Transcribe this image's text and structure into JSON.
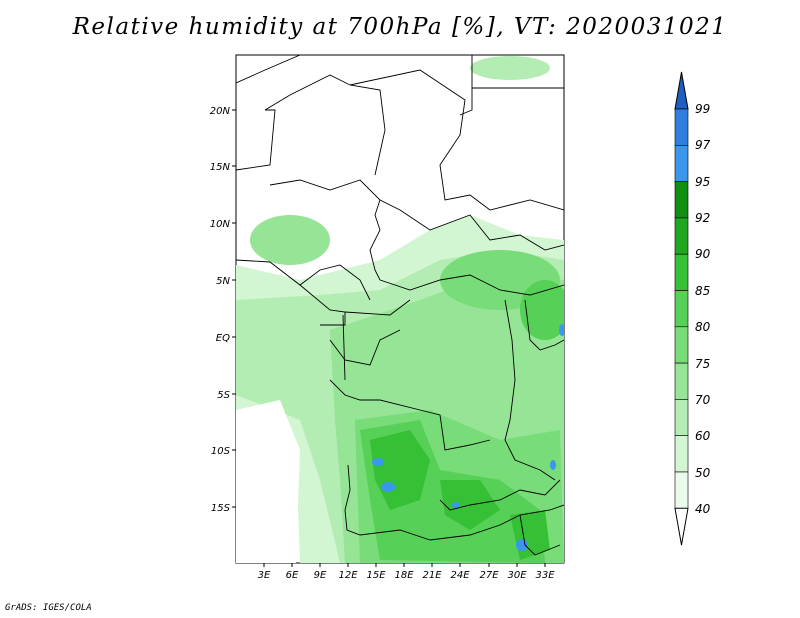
{
  "title": "Relative humidity at 700hPa [%], VT: 2020031021",
  "credit": "GrADS: IGES/COLA",
  "map": {
    "lat_labels": [
      "20N",
      "15N",
      "10N",
      "5N",
      "EQ",
      "5S",
      "10S",
      "15S"
    ],
    "lon_labels": [
      "3E",
      "6E",
      "9E",
      "12E",
      "15E",
      "18E",
      "21E",
      "24E",
      "27E",
      "30E",
      "33E"
    ]
  },
  "colorbar": {
    "labels": [
      "99",
      "97",
      "95",
      "92",
      "90",
      "85",
      "80",
      "75",
      "70",
      "60",
      "50",
      "40"
    ],
    "colors": [
      "#1f5fbf",
      "#2f7fdf",
      "#3a97ee",
      "#109010",
      "#1fa81f",
      "#36c036",
      "#56d056",
      "#78dc78",
      "#96e496",
      "#b4edb4",
      "#d2f5d2",
      "#ebfbeb"
    ]
  }
}
